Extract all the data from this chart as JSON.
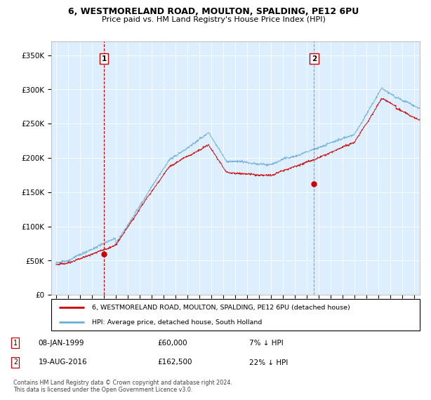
{
  "title": "6, WESTMORELAND ROAD, MOULTON, SPALDING, PE12 6PU",
  "subtitle": "Price paid vs. HM Land Registry's House Price Index (HPI)",
  "ylabel_ticks": [
    "£0",
    "£50K",
    "£100K",
    "£150K",
    "£200K",
    "£250K",
    "£300K",
    "£350K"
  ],
  "ytick_values": [
    0,
    50000,
    100000,
    150000,
    200000,
    250000,
    300000,
    350000
  ],
  "ylim": [
    0,
    370000
  ],
  "xlim_start": 1994.6,
  "xlim_end": 2025.5,
  "sale1": {
    "date": 1999.03,
    "price": 60000,
    "label": "1",
    "text": "08-JAN-1999",
    "price_str": "£60,000",
    "pct": "7% ↓ HPI"
  },
  "sale2": {
    "date": 2016.64,
    "price": 162500,
    "label": "2",
    "text": "19-AUG-2016",
    "price_str": "£162,500",
    "pct": "22% ↓ HPI"
  },
  "legend_line1": "6, WESTMORELAND ROAD, MOULTON, SPALDING, PE12 6PU (detached house)",
  "legend_line2": "HPI: Average price, detached house, South Holland",
  "footer": "Contains HM Land Registry data © Crown copyright and database right 2024.\nThis data is licensed under the Open Government Licence v3.0.",
  "line_color_hpi": "#6baed6",
  "line_color_price": "#cc0000",
  "vline1_color": "#cc0000",
  "vline2_color": "#888888",
  "plot_bg_color": "#ddeeff",
  "background_color": "#ffffff",
  "grid_color": "#ffffff",
  "xtick_years": [
    1995,
    1996,
    1997,
    1998,
    1999,
    2000,
    2001,
    2002,
    2003,
    2004,
    2005,
    2006,
    2007,
    2008,
    2009,
    2010,
    2011,
    2012,
    2013,
    2014,
    2015,
    2016,
    2017,
    2018,
    2019,
    2020,
    2021,
    2022,
    2023,
    2024,
    2025
  ]
}
